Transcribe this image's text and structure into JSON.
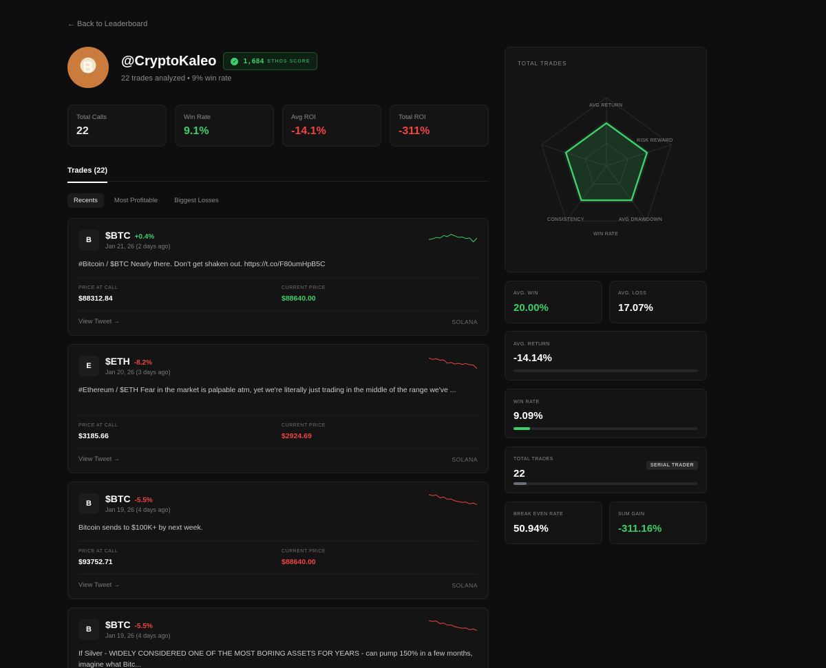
{
  "nav": {
    "back_label": "← Back to Leaderboard"
  },
  "profile": {
    "avatar_letter": "B",
    "handle": "@CryptoKaleo",
    "ethos_score": "1,684",
    "ethos_label": "ETHOS SCORE",
    "subline": "22 trades analyzed • 9% win rate"
  },
  "stats": [
    {
      "label": "Total Calls",
      "value": "22",
      "tone": "neutral"
    },
    {
      "label": "Win Rate",
      "value": "9.1%",
      "tone": "green"
    },
    {
      "label": "Avg ROI",
      "value": "-14.1%",
      "tone": "red"
    },
    {
      "label": "Total ROI",
      "value": "-311%",
      "tone": "red"
    }
  ],
  "tabs": {
    "trades": "Trades (22)"
  },
  "filters": [
    "Recents",
    "Most Profitable",
    "Biggest Losses"
  ],
  "trade_labels": {
    "price_at_call": "PRICE AT CALL",
    "current_price": "CURRENT PRICE",
    "view_tweet": "View Tweet →"
  },
  "trades": [
    {
      "badge": "B",
      "ticker": "$BTC",
      "change": "+0.4%",
      "direction": "up",
      "date": "Jan 21, 26 (2 days ago)",
      "text": "#Bitcoin / $BTC Nearly there. Don't get shaken out. https://t.co/F80umHpB5C",
      "price_at_call": "$88312.84",
      "current_price": "$88640.00",
      "chain": "SOLANA",
      "spark": [
        0.35,
        0.4,
        0.5,
        0.45,
        0.62,
        0.55,
        0.7,
        0.6,
        0.5,
        0.52,
        0.42,
        0.46,
        0.2,
        0.45
      ]
    },
    {
      "badge": "E",
      "ticker": "$ETH",
      "change": "-8.2%",
      "direction": "down",
      "date": "Jan 20, 26 (3 days ago)",
      "text": "#Ethereum / $ETH Fear in the market is palpable atm, yet we're literally just trading in the middle of the range we've ...",
      "price_at_call": "$3185.66",
      "current_price": "$2924.69",
      "chain": "SOLANA",
      "spark": [
        0.85,
        0.75,
        0.8,
        0.7,
        0.72,
        0.5,
        0.55,
        0.45,
        0.5,
        0.42,
        0.48,
        0.4,
        0.38,
        0.15
      ]
    },
    {
      "badge": "B",
      "ticker": "$BTC",
      "change": "-5.5%",
      "direction": "down",
      "date": "Jan 19, 26 (4 days ago)",
      "text": "Bitcoin sends to $100K+ by next week.",
      "price_at_call": "$93752.71",
      "current_price": "$88640.00",
      "chain": "SOLANA",
      "spark": [
        0.9,
        0.85,
        0.88,
        0.7,
        0.75,
        0.6,
        0.62,
        0.5,
        0.45,
        0.4,
        0.42,
        0.3,
        0.35,
        0.25
      ]
    },
    {
      "badge": "B",
      "ticker": "$BTC",
      "change": "-5.5%",
      "direction": "down",
      "date": "Jan 19, 26 (4 days ago)",
      "text": "If Silver - WIDELY CONSIDERED ONE OF THE MOST BORING ASSETS FOR YEARS - can pump 150% in a few months, imagine what Bitc...",
      "price_at_call": "",
      "current_price": "",
      "chain": "",
      "spark": [
        0.9,
        0.85,
        0.88,
        0.7,
        0.75,
        0.6,
        0.62,
        0.5,
        0.45,
        0.4,
        0.42,
        0.3,
        0.35,
        0.25
      ]
    }
  ],
  "radar": {
    "title": "TOTAL TRADES",
    "axes": [
      "AVG RETURN",
      "RISK REWARD",
      "AVG DRAWDOWN",
      "WIN RATE",
      "CONSISTENCY"
    ]
  },
  "metrics": {
    "avg_win": {
      "label": "AVG. WIN",
      "value": "20.00%"
    },
    "avg_loss": {
      "label": "AVG. LOSS",
      "value": "17.07%"
    },
    "avg_return": {
      "label": "AVG. RETURN",
      "value": "-14.14%",
      "fill": 0
    },
    "win_rate": {
      "label": "WIN RATE",
      "value": "9.09%",
      "fill": 0.09
    },
    "total_trades": {
      "label": "TOTAL TRADES",
      "value": "22",
      "tag": "SERIAL TRADER",
      "fill": 0.07
    },
    "break_even": {
      "label": "BREAK EVEN RATE",
      "value": "50.94%"
    },
    "sum_gain": {
      "label": "SUM GAIN",
      "value": "-311.16%"
    }
  },
  "colors": {
    "green": "#3ccf6a",
    "red": "#ef4444",
    "bar_gray": "#6b6f78"
  }
}
